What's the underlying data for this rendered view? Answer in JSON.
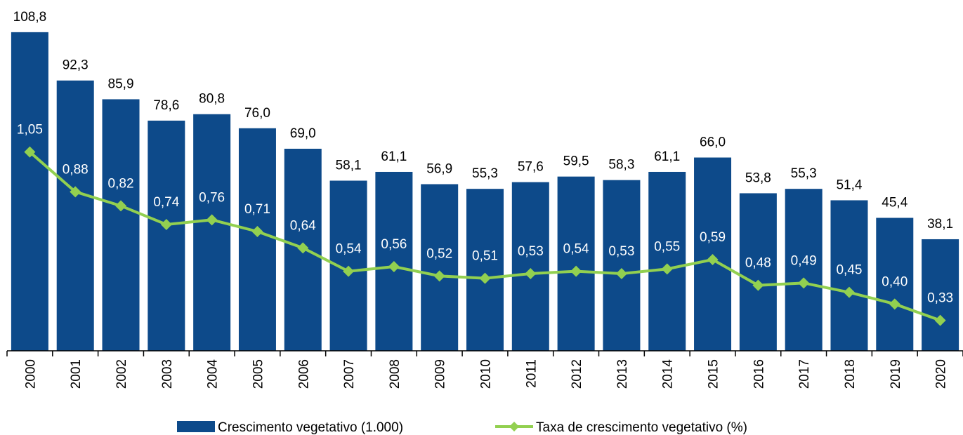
{
  "chart_data": {
    "type": "bar_line",
    "categories": [
      "2000",
      "2001",
      "2002",
      "2003",
      "2004",
      "2005",
      "2006",
      "2007",
      "2008",
      "2009",
      "2010",
      "2011",
      "2012",
      "2013",
      "2014",
      "2015",
      "2016",
      "2017",
      "2018",
      "2019",
      "2020"
    ],
    "series": [
      {
        "name": "Crescimento vegetativo (1.000)",
        "type": "bar",
        "color": "#0d4a8a",
        "values": [
          108.8,
          92.3,
          85.9,
          78.6,
          80.8,
          76.0,
          69.0,
          58.1,
          61.1,
          56.9,
          55.3,
          57.6,
          59.5,
          58.3,
          61.1,
          66.0,
          53.8,
          55.3,
          51.4,
          45.4,
          38.1
        ],
        "value_labels": [
          "108,8",
          "92,3",
          "85,9",
          "78,6",
          "80,8",
          "76,0",
          "69,0",
          "58,1",
          "61,1",
          "56,9",
          "55,3",
          "57,6",
          "59,5",
          "58,3",
          "61,1",
          "66,0",
          "53,8",
          "55,3",
          "51,4",
          "45,4",
          "38,1"
        ]
      },
      {
        "name": "Taxa de crescimento vegetativo (%)",
        "type": "line",
        "axis": "y2",
        "color": "#92d050",
        "values": [
          1.05,
          0.88,
          0.82,
          0.74,
          0.76,
          0.71,
          0.64,
          0.54,
          0.56,
          0.52,
          0.51,
          0.53,
          0.54,
          0.53,
          0.55,
          0.59,
          0.48,
          0.49,
          0.45,
          0.4,
          0.33
        ],
        "value_labels": [
          "1,05",
          "0,88",
          "0,82",
          "0,74",
          "0,76",
          "0,71",
          "0,64",
          "0,54",
          "0,56",
          "0,52",
          "0,51",
          "0,53",
          "0,54",
          "0,53",
          "0,55",
          "0,59",
          "0,48",
          "0,49",
          "0,45",
          "0,40",
          "0,33"
        ]
      }
    ],
    "ylim": [
      0,
      115
    ],
    "y2lim": [
      0.2,
      1.64
    ],
    "legend": "bottom"
  }
}
